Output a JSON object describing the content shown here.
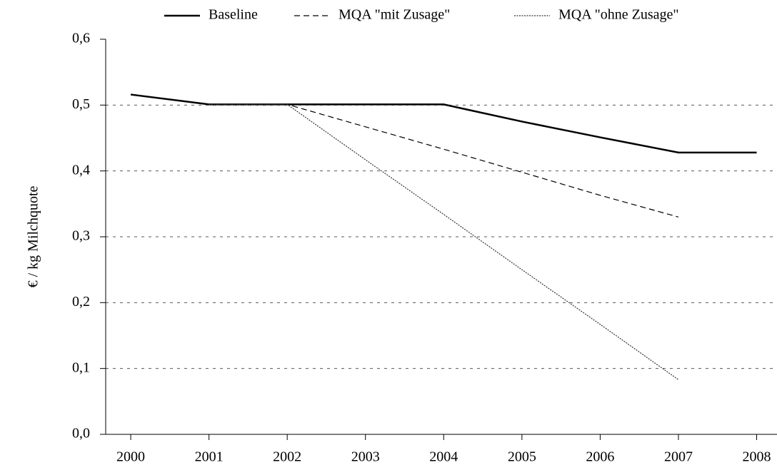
{
  "chart_data": {
    "type": "line",
    "y_label": "€ / kg Milchquote",
    "x": [
      2000,
      2001,
      2002,
      2003,
      2004,
      2005,
      2006,
      2007,
      2008
    ],
    "series": [
      {
        "name": "Baseline",
        "color": "#000000",
        "dash": "solid",
        "values": [
          0.516,
          0.501,
          0.501,
          0.501,
          0.501,
          0.475,
          0.451,
          0.428,
          0.428
        ]
      },
      {
        "name": "MQA \"mit Zusage\"",
        "color": "#000000",
        "dash": "dashed",
        "values": [
          null,
          0.501,
          0.501,
          0.467,
          0.433,
          0.398,
          0.363,
          0.33,
          null
        ]
      },
      {
        "name": "MQA \"ohne Zusage\"",
        "color": "#333333",
        "dash": "dotted",
        "values": [
          null,
          0.501,
          0.501,
          0.417,
          0.334,
          0.25,
          0.167,
          0.083,
          null
        ]
      }
    ],
    "xlim": [
      1999.68,
      2008.26
    ],
    "xticks": [
      2000,
      2001,
      2002,
      2003,
      2004,
      2005,
      2006,
      2007,
      2008
    ],
    "ylim": [
      0,
      0.6
    ],
    "yticks": [
      {
        "value": 0,
        "label": "0,0"
      },
      {
        "value": 0.1,
        "label": "0,1"
      },
      {
        "value": 0.2,
        "label": "0,2"
      },
      {
        "value": 0.3,
        "label": "0,3"
      },
      {
        "value": 0.4,
        "label": "0,4"
      },
      {
        "value": 0.5,
        "label": "0,5"
      },
      {
        "value": 0.6,
        "label": "0,6"
      }
    ],
    "grid": true,
    "legend": "top"
  }
}
